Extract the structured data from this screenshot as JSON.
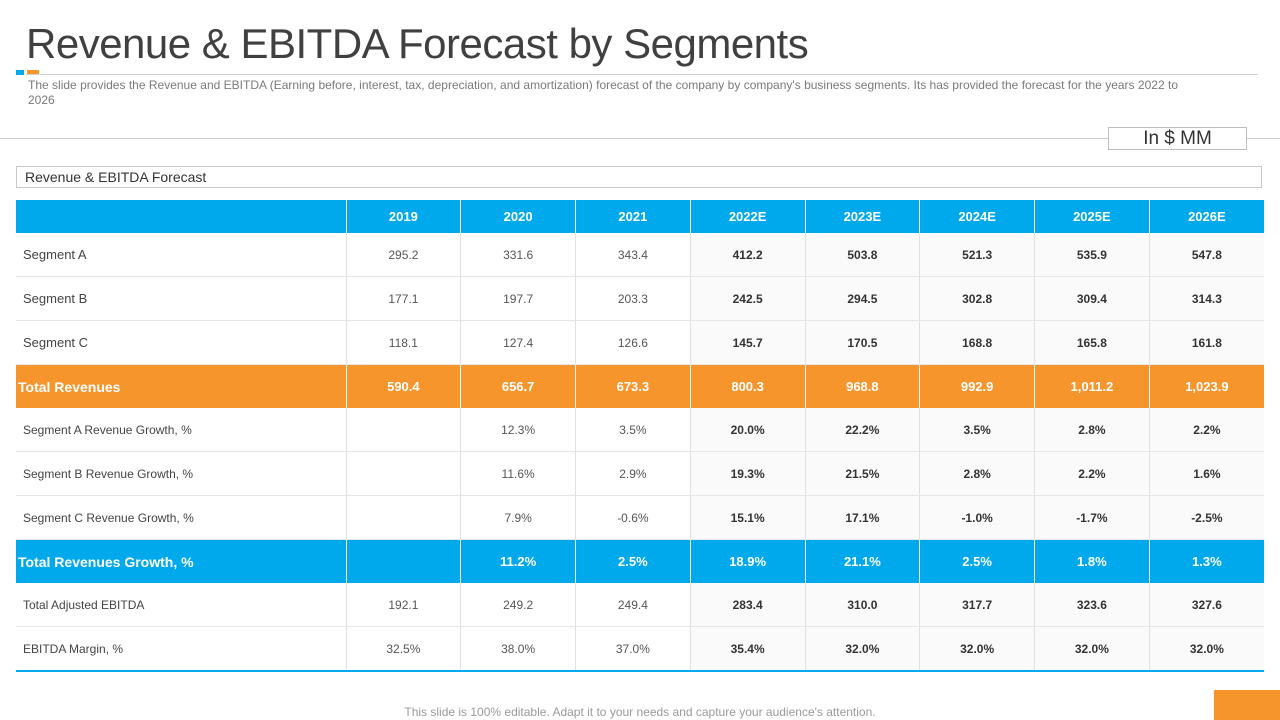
{
  "slide": {
    "title": "Revenue & EBITDA Forecast by Segments",
    "subtitle": "The slide provides the Revenue and EBITDA (Earning before, interest, tax, depreciation, and amortization) forecast of the company by company's business segments. Its has provided the forecast for the years 2022 to 2026",
    "units": "In $ MM",
    "table_caption": "Revenue & EBITDA Forecast",
    "footer": "This slide is 100% editable. Adapt it to your needs and capture your audience's attention."
  },
  "colors": {
    "accent_blue": "#00a9ec",
    "accent_orange": "#f7952d"
  },
  "table": {
    "corner": "",
    "years": [
      "2019",
      "2020",
      "2021",
      "2022E",
      "2023E",
      "2024E",
      "2025E",
      "2026E"
    ],
    "rows": [
      {
        "label": "Segment A",
        "values": [
          "295.2",
          "331.6",
          "343.4",
          "412.2",
          "503.8",
          "521.3",
          "535.9",
          "547.8"
        ]
      },
      {
        "label": "Segment B",
        "values": [
          "177.1",
          "197.7",
          "203.3",
          "242.5",
          "294.5",
          "302.8",
          "309.4",
          "314.3"
        ]
      },
      {
        "label": "Segment C",
        "values": [
          "118.1",
          "127.4",
          "126.6",
          "145.7",
          "170.5",
          "168.8",
          "165.8",
          "161.8"
        ]
      },
      {
        "label": "Total Revenues",
        "values": [
          "590.4",
          "656.7",
          "673.3",
          "800.3",
          "968.8",
          "992.9",
          "1,011.2",
          "1,023.9"
        ]
      },
      {
        "label": "Segment A Revenue Growth, %",
        "values": [
          "",
          "12.3%",
          "3.5%",
          "20.0%",
          "22.2%",
          "3.5%",
          "2.8%",
          "2.2%"
        ]
      },
      {
        "label": "Segment B Revenue Growth, %",
        "values": [
          "",
          "11.6%",
          "2.9%",
          "19.3%",
          "21.5%",
          "2.8%",
          "2.2%",
          "1.6%"
        ]
      },
      {
        "label": "Segment C Revenue Growth, %",
        "values": [
          "",
          "7.9%",
          "-0.6%",
          "15.1%",
          "17.1%",
          "-1.0%",
          "-1.7%",
          "-2.5%"
        ]
      },
      {
        "label": "Total Revenues Growth, %",
        "values": [
          "",
          "11.2%",
          "2.5%",
          "18.9%",
          "21.1%",
          "2.5%",
          "1.8%",
          "1.3%"
        ]
      },
      {
        "label": "Total Adjusted EBITDA",
        "values": [
          "192.1",
          "249.2",
          "249.4",
          "283.4",
          "310.0",
          "317.7",
          "323.6",
          "327.6"
        ]
      },
      {
        "label": "EBITDA Margin, %",
        "values": [
          "32.5%",
          "38.0%",
          "37.0%",
          "35.4%",
          "32.0%",
          "32.0%",
          "32.0%",
          "32.0%"
        ]
      }
    ]
  }
}
